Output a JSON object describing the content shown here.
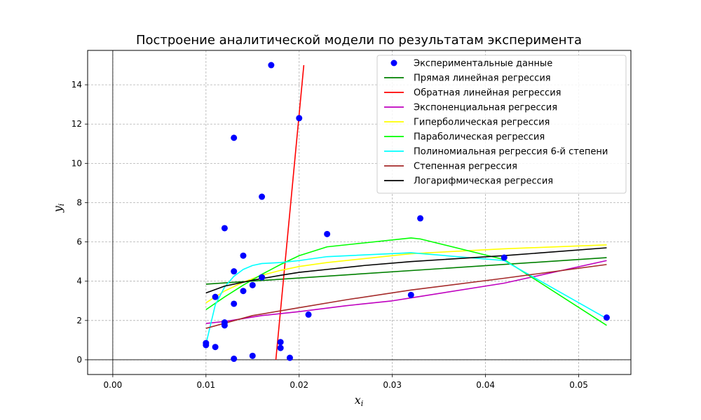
{
  "chart_data": {
    "type": "scatter",
    "title": "Построение аналитической модели по результатам эксперимента",
    "xlabel": {
      "main": "x",
      "sub": "i"
    },
    "ylabel": {
      "main": "y",
      "sub": "i"
    },
    "xlim": [
      -0.0027,
      0.0556
    ],
    "ylim": [
      -0.75,
      15.75
    ],
    "x_ticks": [
      0.0,
      0.01,
      0.02,
      0.03,
      0.04,
      0.05
    ],
    "x_tick_labels": [
      "0.00",
      "0.01",
      "0.02",
      "0.03",
      "0.04",
      "0.05"
    ],
    "y_ticks": [
      0,
      2,
      4,
      6,
      8,
      10,
      12,
      14
    ],
    "y_tick_labels": [
      "0",
      "2",
      "4",
      "6",
      "8",
      "10",
      "12",
      "14"
    ],
    "grid": true,
    "legend_position": "top-right",
    "points": {
      "name": "Экспериментальные данные",
      "color": "#0000ff",
      "x": [
        0.017,
        0.02,
        0.013,
        0.016,
        0.012,
        0.023,
        0.033,
        0.014,
        0.013,
        0.016,
        0.042,
        0.015,
        0.014,
        0.011,
        0.032,
        0.013,
        0.021,
        0.053,
        0.012,
        0.012,
        0.018,
        0.01,
        0.01,
        0.011,
        0.018,
        0.015,
        0.019,
        0.013
      ],
      "y": [
        15.0,
        12.3,
        11.3,
        8.3,
        6.7,
        6.4,
        7.2,
        5.3,
        4.5,
        4.2,
        5.2,
        3.8,
        3.5,
        3.2,
        3.3,
        2.85,
        2.3,
        2.15,
        1.9,
        1.75,
        0.9,
        0.85,
        0.75,
        0.65,
        0.6,
        0.2,
        0.1,
        0.05
      ]
    },
    "series": [
      {
        "name": "Прямая линейная регрессия",
        "color": "#008000",
        "x": [
          0.01,
          0.053
        ],
        "y": [
          3.85,
          5.2
        ]
      },
      {
        "name": "Обратная линейная регрессия",
        "color": "#ff0000",
        "x": [
          0.0175,
          0.0205
        ],
        "y": [
          0.0,
          15.0
        ]
      },
      {
        "name": "Экспоненциальная регрессия",
        "color": "#bf00bf",
        "x": [
          0.01,
          0.012,
          0.014,
          0.016,
          0.02,
          0.025,
          0.03,
          0.032,
          0.042,
          0.053
        ],
        "y": [
          1.85,
          1.95,
          2.1,
          2.25,
          2.45,
          2.75,
          3.0,
          3.15,
          3.9,
          5.05
        ]
      },
      {
        "name": "Гиперболическая регрессия",
        "color": "#ffff00",
        "x": [
          0.01,
          0.012,
          0.014,
          0.016,
          0.018,
          0.02,
          0.023,
          0.027,
          0.032,
          0.042,
          0.053
        ],
        "y": [
          2.9,
          3.5,
          3.95,
          4.3,
          4.55,
          4.75,
          4.95,
          5.15,
          5.4,
          5.65,
          5.85
        ]
      },
      {
        "name": "Параболическая регрессия",
        "color": "#00ff00",
        "x": [
          0.01,
          0.012,
          0.014,
          0.016,
          0.018,
          0.02,
          0.023,
          0.027,
          0.032,
          0.033,
          0.042,
          0.053
        ],
        "y": [
          2.55,
          3.2,
          3.8,
          4.35,
          4.85,
          5.3,
          5.75,
          5.95,
          6.2,
          6.15,
          5.1,
          1.75
        ]
      },
      {
        "name": "Полиномиальная регрессия 6-й степени",
        "color": "#00ffff",
        "x": [
          0.01,
          0.011,
          0.012,
          0.013,
          0.014,
          0.015,
          0.016,
          0.018,
          0.02,
          0.023,
          0.032,
          0.042,
          0.053
        ],
        "y": [
          0.8,
          2.8,
          3.7,
          4.25,
          4.6,
          4.8,
          4.9,
          4.95,
          5.05,
          5.25,
          5.45,
          5.05,
          2.1
        ]
      },
      {
        "name": "Степенная регрессия",
        "color": "#a52a2a",
        "x": [
          0.01,
          0.015,
          0.02,
          0.025,
          0.032,
          0.042,
          0.053
        ],
        "y": [
          1.6,
          2.25,
          2.65,
          3.05,
          3.55,
          4.15,
          4.85
        ]
      },
      {
        "name": "Логарифмическая регрессия",
        "color": "#000000",
        "x": [
          0.01,
          0.012,
          0.015,
          0.018,
          0.02,
          0.023,
          0.027,
          0.032,
          0.042,
          0.053
        ],
        "y": [
          3.4,
          3.75,
          4.05,
          4.3,
          4.45,
          4.6,
          4.8,
          5.0,
          5.3,
          5.7
        ]
      }
    ]
  }
}
